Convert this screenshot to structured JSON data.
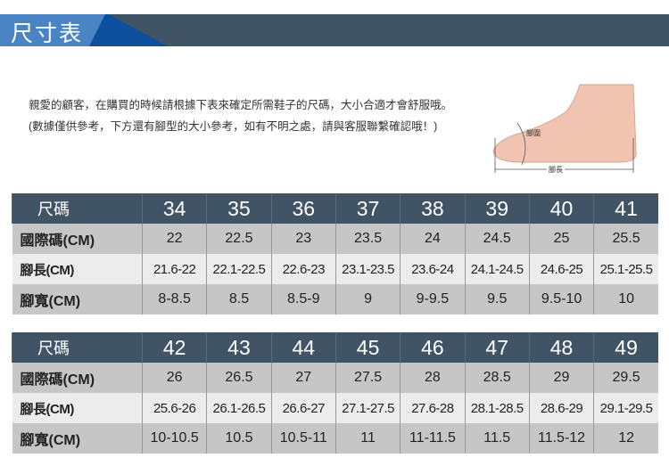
{
  "header": {
    "title": "尺寸表"
  },
  "intro": "親愛的顧客，在購買的時候請根據下表來確定所需鞋子的尺碼，大小合適才會舒服哦。 (數據僅供參考，下方還有腳型的大小參考，如有不明之處，請與客服聯繫確認哦！)",
  "foot_image": {
    "girth_label": "腳圍",
    "length_label": "腳長"
  },
  "row_labels": {
    "size": "尺碼",
    "intl": "國際碼(CM)",
    "length": "腳長(CM)",
    "width": "腳寬(CM)"
  },
  "tables": [
    {
      "sizes": [
        "34",
        "35",
        "36",
        "37",
        "38",
        "39",
        "40",
        "41"
      ],
      "intl": [
        "22",
        "22.5",
        "23",
        "23.5",
        "24",
        "24.5",
        "25",
        "25.5"
      ],
      "length": [
        "21.6-22",
        "22.1-22.5",
        "22.6-23",
        "23.1-23.5",
        "23.6-24",
        "24.1-24.5",
        "24.6-25",
        "25.1-25.5"
      ],
      "width": [
        "8-8.5",
        "8.5",
        "8.5-9",
        "9",
        "9-9.5",
        "9.5",
        "9.5-10",
        "10"
      ]
    },
    {
      "sizes": [
        "42",
        "43",
        "44",
        "45",
        "46",
        "47",
        "48",
        "49"
      ],
      "intl": [
        "26",
        "26.5",
        "27",
        "27.5",
        "28",
        "28.5",
        "29",
        "29.5"
      ],
      "length": [
        "25.6-26",
        "26.1-26.5",
        "26.6-27",
        "27.1-27.5",
        "27.6-28",
        "28.1-28.5",
        "28.6-29",
        "29.1-29.5"
      ],
      "width": [
        "10-10.5",
        "10.5",
        "10.5-11",
        "11",
        "11-11.5",
        "11.5",
        "11.5-12",
        "12"
      ]
    }
  ]
}
